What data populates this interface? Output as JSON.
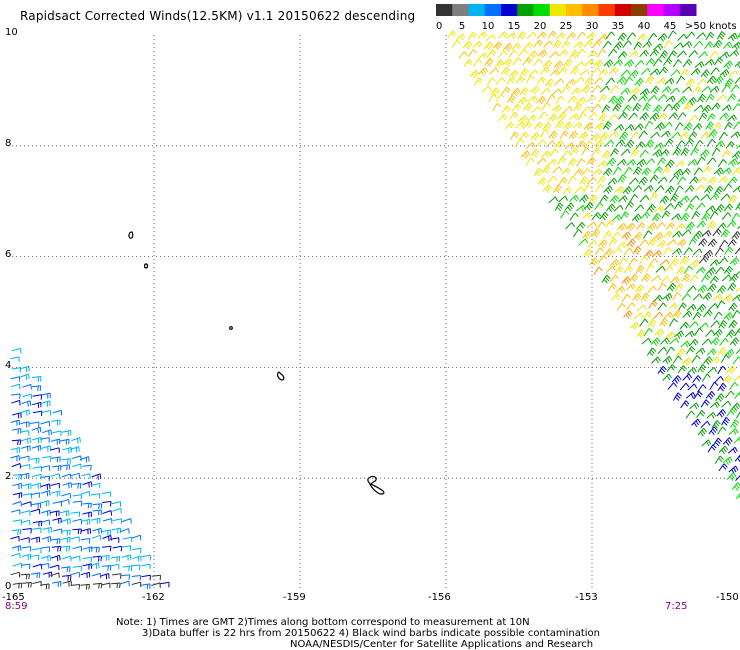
{
  "title": "Rapidsact Corrected Winds(12.5KM) v1.1 20150622 descending",
  "legend": {
    "colors": [
      "#333333",
      "#7f7f7f",
      "#00b4f0",
      "#0070ff",
      "#0000d2",
      "#00a000",
      "#00dc00",
      "#f0e600",
      "#ffbe00",
      "#ff8c00",
      "#ff3c00",
      "#d20000",
      "#8c3c00",
      "#ff00ff",
      "#b400ff",
      "#5a00b4"
    ],
    "labels": [
      "0",
      "5",
      "10",
      "15",
      "20",
      "25",
      "30",
      "35",
      "40",
      "45",
      ">50 knots"
    ]
  },
  "map": {
    "lon_ticks": [
      "-165",
      "-162",
      "-159",
      "-156",
      "-153",
      "-150"
    ],
    "lat_ticks": [
      "0",
      "2",
      "4",
      "6",
      "8",
      "10"
    ]
  },
  "times": {
    "left": "8:59",
    "right": "7:25"
  },
  "notes": {
    "line1": "Note: 1) Times are GMT 2)Times along bottom correspond to measurement at 10N",
    "line2": "3)Data buffer is 22 hrs from 20150622 4) Black wind barbs indicate possible contamination",
    "line3": "NOAA/NESDIS/Center for Satellite Applications and Research"
  }
}
